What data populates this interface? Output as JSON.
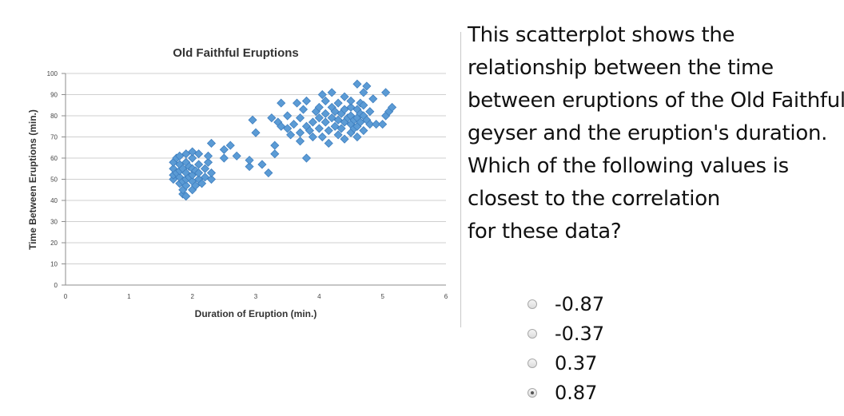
{
  "chart_data": {
    "type": "scatter",
    "title": "Old Faithful Eruptions",
    "xlabel": "Duration of Eruption (min.)",
    "ylabel": "Time Between Eruptions (min.)",
    "xlim": [
      0,
      6
    ],
    "ylim": [
      0,
      100
    ],
    "x_ticks": [
      0,
      1,
      2,
      3,
      4,
      5,
      6
    ],
    "y_ticks": [
      0,
      10,
      20,
      30,
      40,
      50,
      60,
      70,
      80,
      90,
      100
    ],
    "grid": "horizontal",
    "marker_color": "#5b9bd5",
    "marker": "diamond",
    "points": [
      [
        1.7,
        50
      ],
      [
        1.7,
        52
      ],
      [
        1.7,
        55
      ],
      [
        1.7,
        58
      ],
      [
        1.75,
        53
      ],
      [
        1.75,
        60
      ],
      [
        1.8,
        48
      ],
      [
        1.8,
        51
      ],
      [
        1.8,
        54
      ],
      [
        1.8,
        57
      ],
      [
        1.8,
        61
      ],
      [
        1.85,
        43
      ],
      [
        1.85,
        45
      ],
      [
        1.85,
        49
      ],
      [
        1.85,
        55
      ],
      [
        1.9,
        42
      ],
      [
        1.9,
        47
      ],
      [
        1.9,
        50
      ],
      [
        1.9,
        53
      ],
      [
        1.9,
        58
      ],
      [
        1.9,
        62
      ],
      [
        1.95,
        51
      ],
      [
        1.95,
        56
      ],
      [
        2.0,
        45
      ],
      [
        2.0,
        49
      ],
      [
        2.0,
        52
      ],
      [
        2.0,
        55
      ],
      [
        2.0,
        60
      ],
      [
        2.0,
        63
      ],
      [
        2.05,
        47
      ],
      [
        2.05,
        54
      ],
      [
        2.1,
        50
      ],
      [
        2.1,
        53
      ],
      [
        2.1,
        57
      ],
      [
        2.1,
        62
      ],
      [
        2.15,
        48
      ],
      [
        2.2,
        51
      ],
      [
        2.2,
        55
      ],
      [
        2.25,
        58
      ],
      [
        2.25,
        61
      ],
      [
        2.3,
        50
      ],
      [
        2.3,
        53
      ],
      [
        2.3,
        67
      ],
      [
        2.5,
        60
      ],
      [
        2.5,
        64
      ],
      [
        2.6,
        66
      ],
      [
        2.7,
        61
      ],
      [
        2.9,
        56
      ],
      [
        2.9,
        59
      ],
      [
        2.95,
        78
      ],
      [
        3.0,
        72
      ],
      [
        3.1,
        57
      ],
      [
        3.2,
        53
      ],
      [
        3.3,
        62
      ],
      [
        3.3,
        66
      ],
      [
        3.25,
        79
      ],
      [
        3.35,
        77
      ],
      [
        3.4,
        75
      ],
      [
        3.4,
        86
      ],
      [
        3.5,
        80
      ],
      [
        3.5,
        74
      ],
      [
        3.55,
        71
      ],
      [
        3.6,
        76
      ],
      [
        3.65,
        86
      ],
      [
        3.7,
        68
      ],
      [
        3.7,
        72
      ],
      [
        3.7,
        79
      ],
      [
        3.75,
        83
      ],
      [
        3.8,
        75
      ],
      [
        3.8,
        60
      ],
      [
        3.8,
        87
      ],
      [
        3.85,
        73
      ],
      [
        3.9,
        70
      ],
      [
        3.9,
        77
      ],
      [
        3.95,
        82
      ],
      [
        4.0,
        74
      ],
      [
        4.0,
        79
      ],
      [
        4.0,
        84
      ],
      [
        4.05,
        70
      ],
      [
        4.05,
        90
      ],
      [
        4.1,
        77
      ],
      [
        4.1,
        81
      ],
      [
        4.1,
        87
      ],
      [
        4.15,
        67
      ],
      [
        4.15,
        73
      ],
      [
        4.2,
        79
      ],
      [
        4.2,
        84
      ],
      [
        4.2,
        91
      ],
      [
        4.25,
        75
      ],
      [
        4.25,
        82
      ],
      [
        4.3,
        71
      ],
      [
        4.3,
        78
      ],
      [
        4.3,
        86
      ],
      [
        4.35,
        74
      ],
      [
        4.35,
        81
      ],
      [
        4.4,
        69
      ],
      [
        4.4,
        77
      ],
      [
        4.4,
        83
      ],
      [
        4.4,
        89
      ],
      [
        4.45,
        79
      ],
      [
        4.5,
        72
      ],
      [
        4.5,
        76
      ],
      [
        4.5,
        80
      ],
      [
        4.5,
        84
      ],
      [
        4.5,
        87
      ],
      [
        4.55,
        74
      ],
      [
        4.55,
        78
      ],
      [
        4.6,
        70
      ],
      [
        4.6,
        75
      ],
      [
        4.6,
        79
      ],
      [
        4.6,
        83
      ],
      [
        4.6,
        95
      ],
      [
        4.65,
        77
      ],
      [
        4.65,
        81
      ],
      [
        4.65,
        86
      ],
      [
        4.7,
        73
      ],
      [
        4.7,
        80
      ],
      [
        4.7,
        85
      ],
      [
        4.7,
        91
      ],
      [
        4.75,
        78
      ],
      [
        4.75,
        94
      ],
      [
        4.8,
        76
      ],
      [
        4.8,
        82
      ],
      [
        4.85,
        88
      ],
      [
        4.9,
        76
      ],
      [
        5.0,
        76
      ],
      [
        5.05,
        80
      ],
      [
        5.05,
        91
      ],
      [
        5.1,
        82
      ],
      [
        5.15,
        84
      ]
    ]
  },
  "question": {
    "lines": [
      "This scatterplot shows the",
      "relationship between the time",
      "between eruptions of the Old Faithful",
      "geyser and the eruption's duration.",
      "Which of the following values is",
      "closest to the correlation",
      "for these data?"
    ],
    "options": [
      {
        "label": "-0.87",
        "selected": false
      },
      {
        "label": "-0.37",
        "selected": false
      },
      {
        "label": "0.37",
        "selected": false
      },
      {
        "label": "0.87",
        "selected": true
      }
    ]
  }
}
